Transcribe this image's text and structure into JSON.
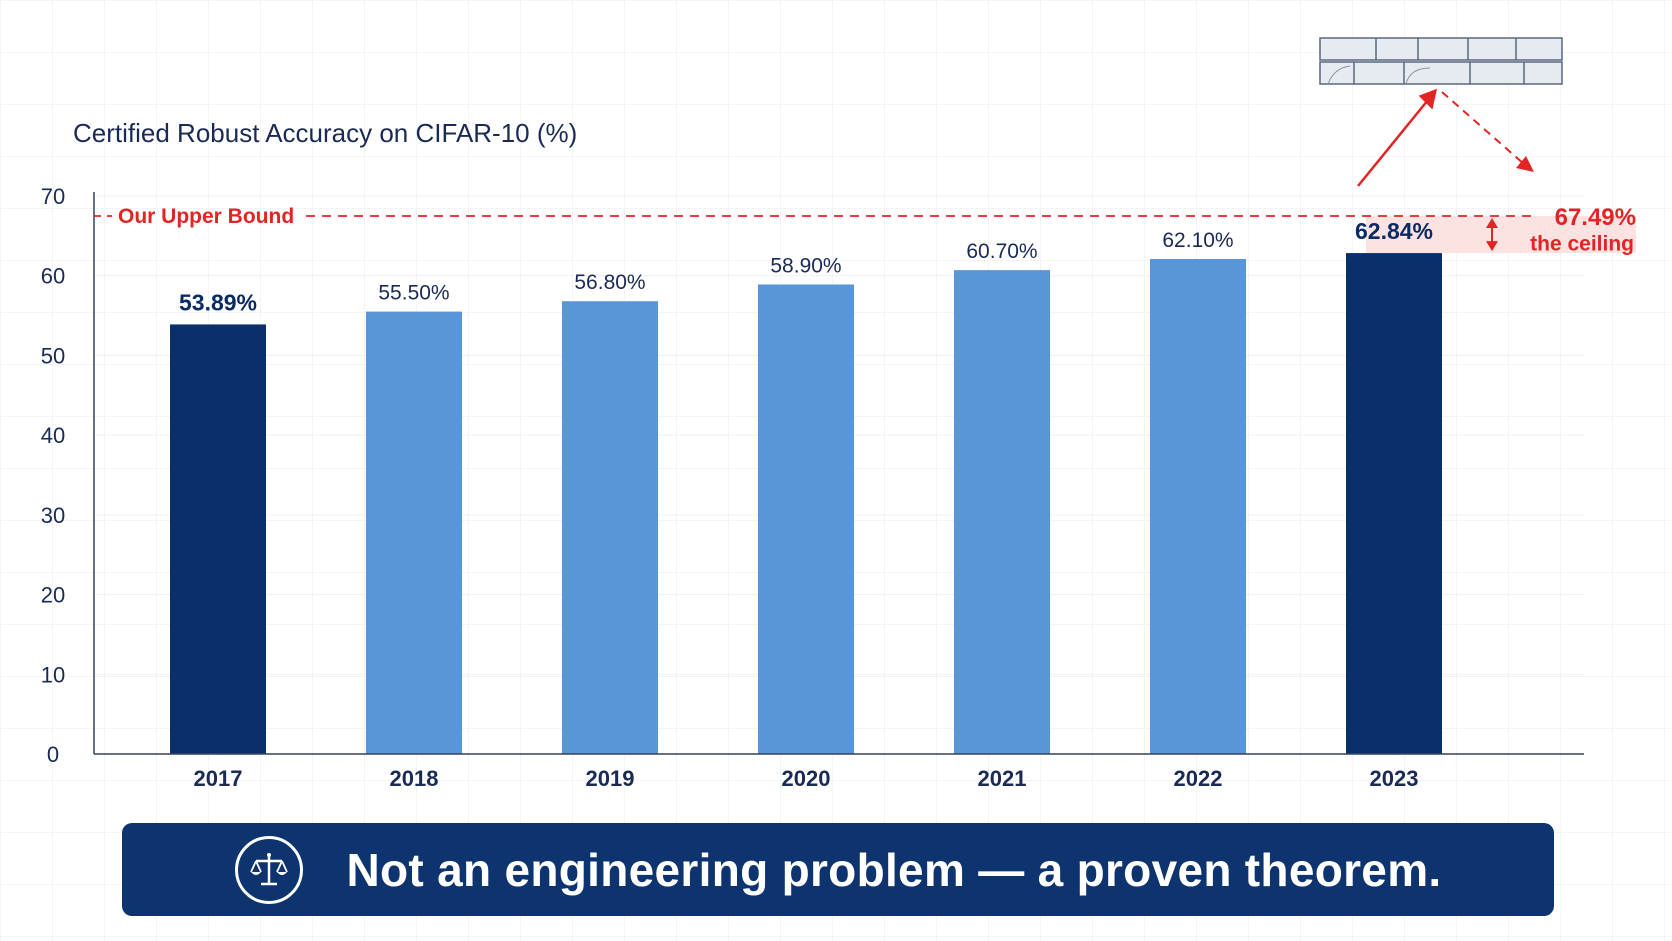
{
  "chart_data": {
    "type": "bar",
    "title": "Certified Robust Accuracy on CIFAR-10 (%)",
    "categories": [
      "2017",
      "2018",
      "2019",
      "2020",
      "2021",
      "2022",
      "2023"
    ],
    "values": [
      53.89,
      55.5,
      56.8,
      58.9,
      60.7,
      62.1,
      62.84
    ],
    "value_labels": [
      "53.89%",
      "55.50%",
      "56.80%",
      "58.90%",
      "60.70%",
      "62.10%",
      "62.84%"
    ],
    "highlighted": [
      "2017",
      "2023"
    ],
    "ylim": [
      0,
      70
    ],
    "yticks": [
      0,
      10,
      20,
      30,
      40,
      50,
      60,
      70
    ],
    "grid": true,
    "reference_line": {
      "label": "Our Upper Bound",
      "value": 67.49,
      "value_label": "67.49%"
    },
    "gap_annotation": "the ceiling",
    "colors": {
      "bar": "#5896d8",
      "bar_highlight": "#0a2f6b",
      "reference": "#e32424",
      "text": "#1b2a55"
    }
  },
  "banner": {
    "text": "Not an engineering problem — a proven theorem.",
    "icon": "balance-scale-icon",
    "color": "#0e3470"
  },
  "decoration": {
    "icon": "brick-wall-icon"
  }
}
